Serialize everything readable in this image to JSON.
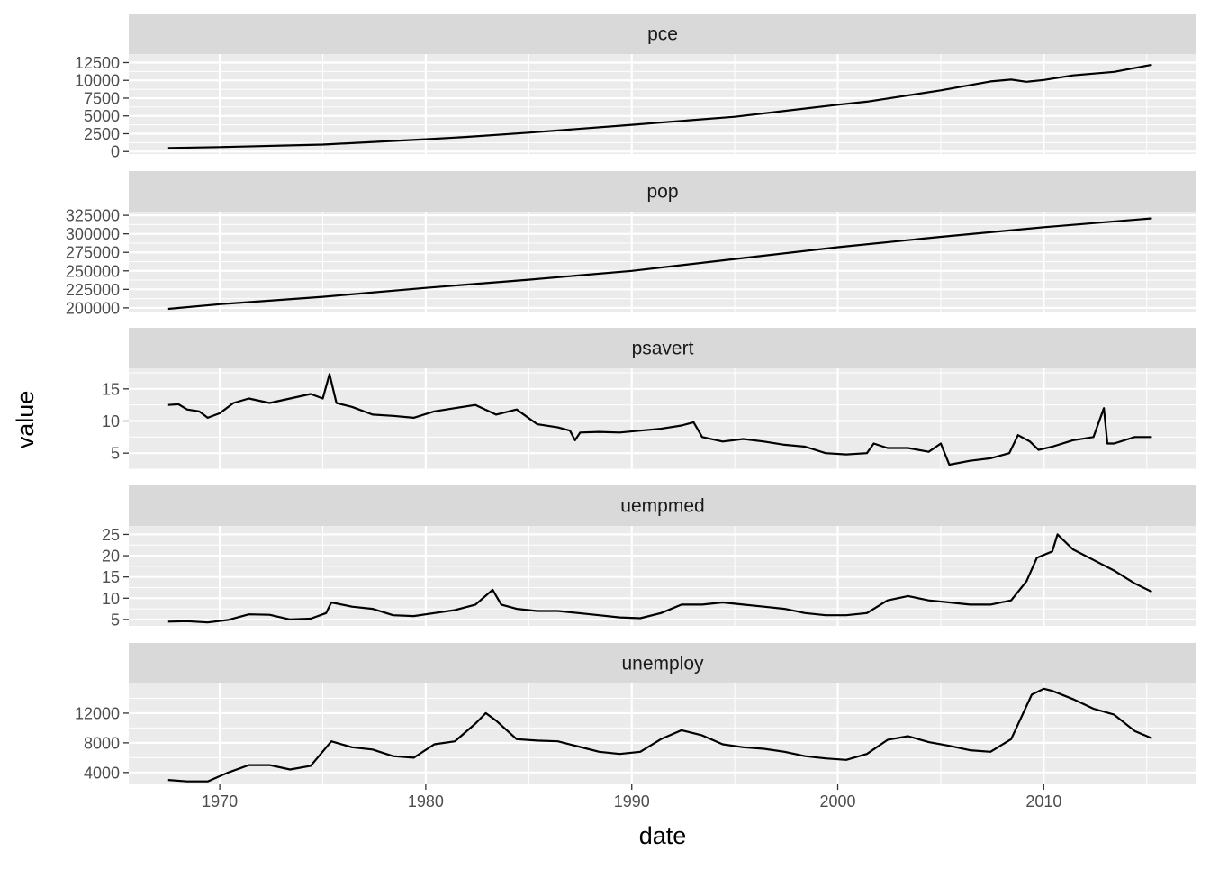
{
  "chart_data": {
    "type": "line",
    "layout": "faceted vertical, free y scales",
    "xlabel": "date",
    "ylabel": "value",
    "xlim": [
      "1965-08-01",
      "2017-06-01"
    ],
    "x_ticks": [
      {
        "label": "1970",
        "value": "1970-01-01"
      },
      {
        "label": "1980",
        "value": "1980-01-01"
      },
      {
        "label": "1990",
        "value": "1990-01-01"
      },
      {
        "label": "2000",
        "value": "2000-01-01"
      },
      {
        "label": "2010",
        "value": "2010-01-01"
      }
    ],
    "grid": true,
    "colors": {
      "panel_bg": "#ebebeb",
      "strip_bg": "#d9d9d9",
      "grid_major": "#ffffff",
      "line": "#000000"
    },
    "panels": [
      {
        "name": "pce",
        "ylim": [
          -350,
          13700
        ],
        "y_ticks": [
          0,
          2500,
          5000,
          7500,
          10000,
          12500
        ],
        "x": [
          "1967-07-01",
          "1970-01-01",
          "1975-01-01",
          "1980-01-01",
          "1982-01-01",
          "1985-01-01",
          "1990-01-01",
          "1995-01-01",
          "2000-01-01",
          "2001-06-01",
          "2005-01-01",
          "2007-06-01",
          "2008-06-01",
          "2009-03-01",
          "2010-01-01",
          "2011-06-01",
          "2013-06-01",
          "2015-04-01"
        ],
        "values": [
          500,
          630,
          980,
          1730,
          2050,
          2650,
          3750,
          4880,
          6580,
          7000,
          8600,
          9850,
          10100,
          9800,
          10050,
          10700,
          11200,
          12200
        ]
      },
      {
        "name": "pop",
        "ylim": [
          195000,
          330000
        ],
        "y_ticks": [
          200000,
          225000,
          250000,
          275000,
          300000,
          325000
        ],
        "x": [
          "1967-07-01",
          "1970-01-01",
          "1975-01-01",
          "1980-01-01",
          "1985-01-01",
          "1990-01-01",
          "1995-01-01",
          "2000-01-01",
          "2005-01-01",
          "2010-01-01",
          "2015-04-01"
        ],
        "values": [
          198700,
          205000,
          215000,
          227000,
          238000,
          250000,
          266000,
          282000,
          296000,
          309000,
          320900
        ]
      },
      {
        "name": "psavert",
        "ylim": [
          2.5,
          18.2
        ],
        "y_ticks": [
          5,
          10,
          15
        ],
        "x": [
          "1967-07-01",
          "1968-01-01",
          "1968-06-01",
          "1969-01-01",
          "1969-06-01",
          "1970-01-01",
          "1970-09-01",
          "1971-06-01",
          "1972-06-01",
          "1973-06-01",
          "1974-06-01",
          "1975-01-01",
          "1975-05-01",
          "1975-09-01",
          "1976-06-01",
          "1977-06-01",
          "1978-06-01",
          "1979-06-01",
          "1980-06-01",
          "1981-06-01",
          "1982-06-01",
          "1983-06-01",
          "1984-06-01",
          "1985-06-01",
          "1986-06-01",
          "1987-01-01",
          "1987-04-01",
          "1987-07-01",
          "1988-06-01",
          "1989-06-01",
          "1990-06-01",
          "1991-06-01",
          "1992-06-01",
          "1993-01-01",
          "1993-06-01",
          "1994-06-01",
          "1995-06-01",
          "1996-06-01",
          "1997-06-01",
          "1998-06-01",
          "1999-06-01",
          "2000-06-01",
          "2001-06-01",
          "2001-10-01",
          "2002-06-01",
          "2003-06-01",
          "2004-06-01",
          "2005-01-01",
          "2005-06-01",
          "2006-06-01",
          "2007-06-01",
          "2008-05-01",
          "2008-10-01",
          "2009-05-01",
          "2009-10-01",
          "2010-06-01",
          "2011-06-01",
          "2012-06-01",
          "2012-12-01",
          "2013-02-01",
          "2013-06-01",
          "2014-06-01",
          "2015-04-01"
        ],
        "values": [
          12.5,
          12.6,
          11.8,
          11.5,
          10.5,
          11.2,
          12.8,
          13.5,
          12.8,
          13.5,
          14.2,
          13.5,
          17.3,
          12.8,
          12.2,
          11.0,
          10.8,
          10.5,
          11.5,
          12.0,
          12.5,
          11.0,
          11.8,
          9.5,
          9.0,
          8.5,
          7.0,
          8.2,
          8.3,
          8.2,
          8.5,
          8.8,
          9.3,
          9.8,
          7.5,
          6.8,
          7.2,
          6.8,
          6.3,
          6.0,
          5.0,
          4.8,
          5.0,
          6.5,
          5.8,
          5.8,
          5.2,
          6.5,
          3.2,
          3.8,
          4.2,
          5.0,
          7.8,
          6.8,
          5.5,
          6.0,
          7.0,
          7.5,
          12.0,
          6.5,
          6.5,
          7.5,
          7.5
        ]
      },
      {
        "name": "uempmed",
        "ylim": [
          3.5,
          27.0
        ],
        "y_ticks": [
          5,
          10,
          15,
          20,
          25
        ],
        "x": [
          "1967-07-01",
          "1968-06-01",
          "1969-06-01",
          "1970-06-01",
          "1971-06-01",
          "1972-06-01",
          "1973-06-01",
          "1974-06-01",
          "1975-03-01",
          "1975-06-01",
          "1976-06-01",
          "1977-06-01",
          "1978-06-01",
          "1979-06-01",
          "1980-06-01",
          "1981-06-01",
          "1982-06-01",
          "1983-04-01",
          "1983-09-01",
          "1984-06-01",
          "1985-06-01",
          "1986-06-01",
          "1987-06-01",
          "1988-06-01",
          "1989-06-01",
          "1990-06-01",
          "1991-06-01",
          "1992-06-01",
          "1993-06-01",
          "1994-06-01",
          "1995-06-01",
          "1996-06-01",
          "1997-06-01",
          "1998-06-01",
          "1999-06-01",
          "2000-06-01",
          "2001-06-01",
          "2002-06-01",
          "2003-06-01",
          "2004-06-01",
          "2005-06-01",
          "2006-06-01",
          "2007-06-01",
          "2008-06-01",
          "2009-03-01",
          "2009-09-01",
          "2010-06-01",
          "2010-09-01",
          "2011-06-01",
          "2012-06-01",
          "2013-06-01",
          "2014-06-01",
          "2015-04-01"
        ],
        "values": [
          4.5,
          4.6,
          4.3,
          4.9,
          6.2,
          6.1,
          5.0,
          5.2,
          6.5,
          9.0,
          8.0,
          7.5,
          6.0,
          5.8,
          6.5,
          7.2,
          8.5,
          12.0,
          8.5,
          7.5,
          7.0,
          7.0,
          6.5,
          6.0,
          5.5,
          5.3,
          6.5,
          8.5,
          8.5,
          9.0,
          8.5,
          8.0,
          7.5,
          6.5,
          6.0,
          6.0,
          6.5,
          9.5,
          10.5,
          9.5,
          9.0,
          8.5,
          8.5,
          9.5,
          14.0,
          19.5,
          21.0,
          25.0,
          21.5,
          19.0,
          16.5,
          13.5,
          11.5
        ]
      },
      {
        "name": "unemploy",
        "ylim": [
          2400,
          16000
        ],
        "y_ticks": [
          4000,
          8000,
          12000
        ],
        "x": [
          "1967-07-01",
          "1968-06-01",
          "1969-06-01",
          "1970-06-01",
          "1971-06-01",
          "1972-06-01",
          "1973-06-01",
          "1974-06-01",
          "1975-06-01",
          "1976-06-01",
          "1977-06-01",
          "1978-06-01",
          "1979-06-01",
          "1980-06-01",
          "1981-06-01",
          "1982-06-01",
          "1982-12-01",
          "1983-06-01",
          "1984-06-01",
          "1985-06-01",
          "1986-06-01",
          "1987-06-01",
          "1988-06-01",
          "1989-06-01",
          "1990-06-01",
          "1991-06-01",
          "1992-06-01",
          "1993-06-01",
          "1994-06-01",
          "1995-06-01",
          "1996-06-01",
          "1997-06-01",
          "1998-06-01",
          "1999-06-01",
          "2000-06-01",
          "2001-06-01",
          "2002-06-01",
          "2003-06-01",
          "2004-06-01",
          "2005-06-01",
          "2006-06-01",
          "2007-06-01",
          "2008-06-01",
          "2009-06-01",
          "2010-01-01",
          "2010-06-01",
          "2011-06-01",
          "2012-06-01",
          "2013-06-01",
          "2014-06-01",
          "2015-04-01"
        ],
        "values": [
          3000,
          2800,
          2800,
          4000,
          5000,
          5000,
          4400,
          4900,
          8200,
          7400,
          7100,
          6200,
          6000,
          7800,
          8200,
          10600,
          12000,
          11000,
          8500,
          8300,
          8200,
          7500,
          6800,
          6500,
          6800,
          8500,
          9700,
          9000,
          7800,
          7400,
          7200,
          6800,
          6200,
          5900,
          5700,
          6500,
          8400,
          8900,
          8100,
          7600,
          7000,
          6800,
          8500,
          14500,
          15300,
          15000,
          13900,
          12600,
          11800,
          9600,
          8600
        ]
      }
    ]
  }
}
